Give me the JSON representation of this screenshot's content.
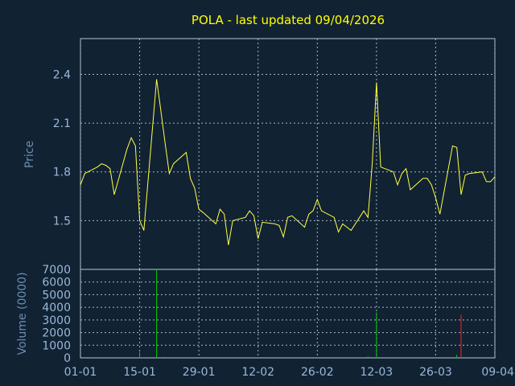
{
  "chart_data": [
    {
      "type": "line",
      "title": "POLA - last updated 09/04/2026",
      "ylabel": "Price",
      "ylim": [
        1.2,
        2.62
      ],
      "yticks": [
        "1.5",
        "1.8",
        "2.1",
        "2.4"
      ],
      "grid": true,
      "series": [
        {
          "color": "#ffff44",
          "x": [
            "01-01",
            "02-01",
            "05-01",
            "06-01",
            "07-01",
            "08-01",
            "09-01",
            "12-01",
            "13-01",
            "14-01",
            "15-01",
            "16-01",
            "19-01",
            "20-01",
            "21-01",
            "22-01",
            "23-01",
            "26-01",
            "27-01",
            "28-01",
            "29-01",
            "30-01",
            "02-02",
            "03-02",
            "04-02",
            "05-02",
            "06-02",
            "09-02",
            "10-02",
            "11-02",
            "12-02",
            "13-02",
            "16-02",
            "17-02",
            "18-02",
            "19-02",
            "20-02",
            "23-02",
            "24-02",
            "25-02",
            "26-02",
            "27-02",
            "02-03",
            "03-03",
            "04-03",
            "05-03",
            "06-03",
            "09-03",
            "10-03",
            "11-03",
            "12-03",
            "13-03",
            "16-03",
            "17-03",
            "18-03",
            "19-03",
            "20-03",
            "23-03",
            "24-03",
            "25-03",
            "26-03",
            "27-03",
            "30-03",
            "31-03",
            "01-04",
            "02-04",
            "03-04",
            "06-04",
            "07-04",
            "08-04",
            "09-04"
          ],
          "values": [
            1.72,
            1.79,
            1.83,
            1.85,
            1.84,
            1.82,
            1.66,
            1.94,
            2.01,
            1.96,
            1.5,
            1.44,
            2.37,
            2.18,
            1.98,
            1.79,
            1.85,
            1.92,
            1.76,
            1.7,
            1.57,
            1.55,
            1.48,
            1.57,
            1.54,
            1.35,
            1.5,
            1.52,
            1.56,
            1.53,
            1.39,
            1.49,
            1.48,
            1.47,
            1.4,
            1.52,
            1.53,
            1.46,
            1.54,
            1.56,
            1.63,
            1.56,
            1.52,
            1.43,
            1.48,
            1.46,
            1.44,
            1.56,
            1.52,
            1.85,
            2.35,
            1.83,
            1.8,
            1.72,
            1.79,
            1.82,
            1.69,
            1.76,
            1.76,
            1.72,
            1.64,
            1.54,
            1.96,
            1.95,
            1.66,
            1.78,
            1.79,
            1.8,
            1.74,
            1.74,
            1.77
          ]
        }
      ]
    },
    {
      "type": "bar",
      "ylabel": "Volume (0000)",
      "ylim": [
        0,
        7000
      ],
      "yticks": [
        "0",
        "1000",
        "2000",
        "3000",
        "4000",
        "5000",
        "6000",
        "7000"
      ],
      "xticks": [
        "01-01",
        "15-01",
        "29-01",
        "12-02",
        "26-02",
        "12-03",
        "26-03",
        "09-04"
      ],
      "grid": true,
      "bars": [
        {
          "x": "15-01",
          "value": 450,
          "color": "#00cc00"
        },
        {
          "x": "19-01",
          "value": 7000,
          "color": "#00cc00"
        },
        {
          "x": "21-01",
          "value": 90,
          "color": "#00cc00"
        },
        {
          "x": "10-03",
          "value": 120,
          "color": "#00cc00"
        },
        {
          "x": "12-03",
          "value": 3600,
          "color": "#00cc00"
        },
        {
          "x": "31-03",
          "value": 250,
          "color": "#00cc00"
        },
        {
          "x": "01-04",
          "value": 3400,
          "color": "#ff2222"
        }
      ]
    }
  ]
}
